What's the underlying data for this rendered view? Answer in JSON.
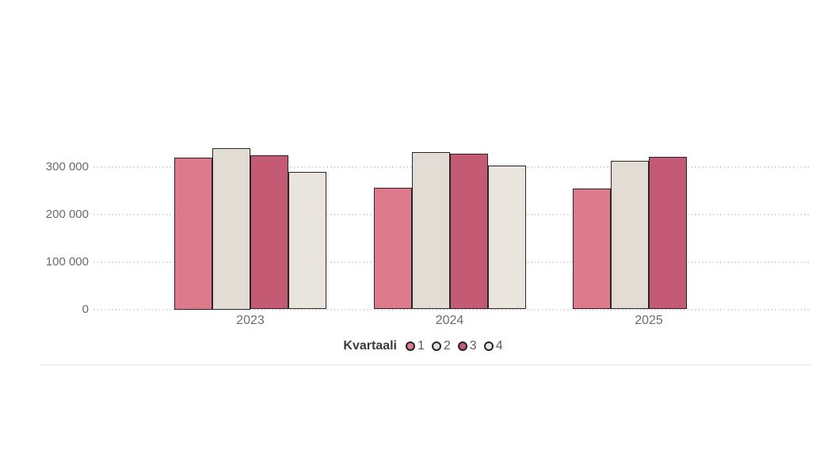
{
  "chart_data": {
    "type": "bar",
    "title": "",
    "categories": [
      "2023",
      "2024",
      "2025"
    ],
    "legend_title": "Kvartaali",
    "series": [
      {
        "name": "1",
        "color": "#dd7b8c",
        "values": [
          320000,
          256000,
          254000
        ]
      },
      {
        "name": "2",
        "color": "#e2dcd5",
        "values": [
          340000,
          331000,
          312000
        ]
      },
      {
        "name": "3",
        "color": "#c45a73",
        "values": [
          324000,
          327000,
          321000
        ]
      },
      {
        "name": "4",
        "color": "#e9e4de",
        "values": [
          289000,
          303000,
          null
        ]
      }
    ],
    "yticks": [
      0,
      100000,
      200000,
      300000
    ],
    "ytick_labels": [
      "0",
      "100 000",
      "200 000",
      "300 000"
    ],
    "ylim": [
      0,
      350000
    ],
    "grid": "horizontal-dotted",
    "legend_position": "bottom-center",
    "colors": {
      "bar_border": "#2b2425",
      "gridline": "#d8d2d2",
      "axis_text": "#6b6b6b",
      "legend_title_text": "#3c3a38",
      "legend_item_text": "#5f5d5b",
      "divider": "#e8e8e8",
      "background": "#ffffff"
    }
  }
}
